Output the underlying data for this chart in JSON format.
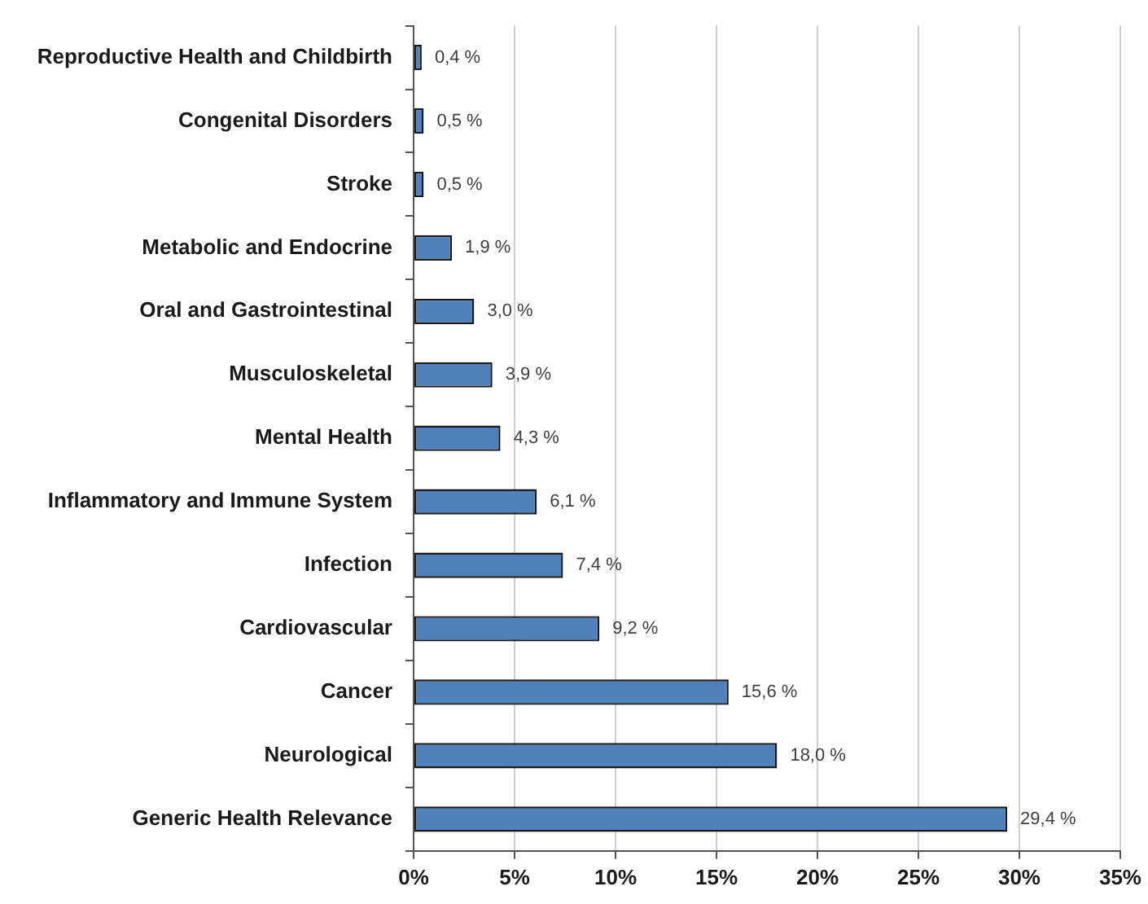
{
  "chart_data": {
    "type": "bar",
    "orientation": "horizontal",
    "categories": [
      "Reproductive Health and Childbirth",
      "Congenital Disorders",
      "Stroke",
      "Metabolic and Endocrine",
      "Oral and Gastrointestinal",
      "Musculoskeletal",
      "Mental Health",
      "Inflammatory and Immune System",
      "Infection",
      "Cardiovascular",
      "Cancer",
      "Neurological",
      "Generic Health Relevance"
    ],
    "values": [
      0.4,
      0.5,
      0.5,
      1.9,
      3.0,
      3.9,
      4.3,
      6.1,
      7.4,
      9.2,
      15.6,
      18.0,
      29.4
    ],
    "value_labels": [
      "0,4 %",
      "0,5 %",
      "0,5 %",
      "1,9 %",
      "3,0 %",
      "3,9 %",
      "4,3 %",
      "6,1 %",
      "7,4 %",
      "9,2 %",
      "15,6 %",
      "18,0 %",
      "29,4 %"
    ],
    "color": "#4f81bd",
    "xlim": [
      0,
      35
    ],
    "xticks": [
      {
        "value": 0,
        "label": "0%"
      },
      {
        "value": 5,
        "label": "5%"
      },
      {
        "value": 10,
        "label": "10%"
      },
      {
        "value": 15,
        "label": "15%"
      },
      {
        "value": 20,
        "label": "20%"
      },
      {
        "value": 25,
        "label": "25%"
      },
      {
        "value": 30,
        "label": "30%"
      },
      {
        "value": 35,
        "label": "35%"
      }
    ],
    "grid": "x",
    "legend": false
  }
}
